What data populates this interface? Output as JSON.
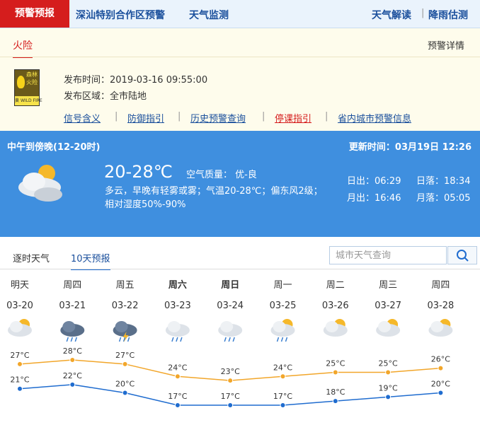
{
  "nav": {
    "active": "预警预报",
    "links": [
      "深汕特别合作区预警",
      "天气监测"
    ],
    "right": [
      "天气解读",
      "降雨估测"
    ]
  },
  "warning": {
    "tab": "火险",
    "detail": "预警详情",
    "badge": {
      "line1": "森林",
      "line2": "火险",
      "level": "黄",
      "en": "WILD FIRE"
    },
    "time_label": "发布时间：",
    "time": "2019-03-16 09:55:00",
    "area_label": "发布区域：",
    "area": "全市陆地",
    "links": [
      "信号含义",
      "防御指引",
      "历史预警查询",
      "停课指引",
      "省内城市预警信息"
    ]
  },
  "now": {
    "period": "中午到傍晚(12-20时)",
    "updated": "更新时间：03月19日 12:26",
    "temp": "20-28℃",
    "air_label": "空气质量：",
    "air": "优-良",
    "desc": [
      "多云，早晚有轻雾或雾；气温20-28℃；偏东风2级；",
      "相对湿度50%-90%"
    ],
    "sunrise": "日出：06:29",
    "sunset": "日落：18:34",
    "moonrise": "月出：16:46",
    "moonset": "月落：05:05"
  },
  "tabs": [
    "逐时天气",
    "10天预报"
  ],
  "search_placeholder": "城市天气查询",
  "forecast": {
    "days": [
      {
        "name": "明天",
        "date": "03-20"
      },
      {
        "name": "周四",
        "date": "03-21"
      },
      {
        "name": "周五",
        "date": "03-22"
      },
      {
        "name": "周六",
        "date": "03-23",
        "bold": true
      },
      {
        "name": "周日",
        "date": "03-24",
        "bold": true
      },
      {
        "name": "周一",
        "date": "03-25"
      },
      {
        "name": "周二",
        "date": "03-26"
      },
      {
        "name": "周三",
        "date": "03-27"
      },
      {
        "name": "周四",
        "date": "03-28"
      }
    ],
    "high": {
      "color": "#f2a62a",
      "values": [
        27,
        28,
        27,
        24,
        23,
        24,
        25,
        25,
        26
      ],
      "value_labels": [
        "27°C",
        "28°C",
        "27°C",
        "24°C",
        "23°C",
        "24°C",
        "25°C",
        "25°C",
        "26°C"
      ]
    },
    "low": {
      "color": "#1f6ccf",
      "values": [
        21,
        22,
        20,
        17,
        17,
        17,
        18,
        19,
        20
      ],
      "value_labels": [
        "21°C",
        "22°C",
        "20°C",
        "17°C",
        "17°C",
        "17°C",
        "18°C",
        "19°C",
        "20°C"
      ]
    }
  }
}
